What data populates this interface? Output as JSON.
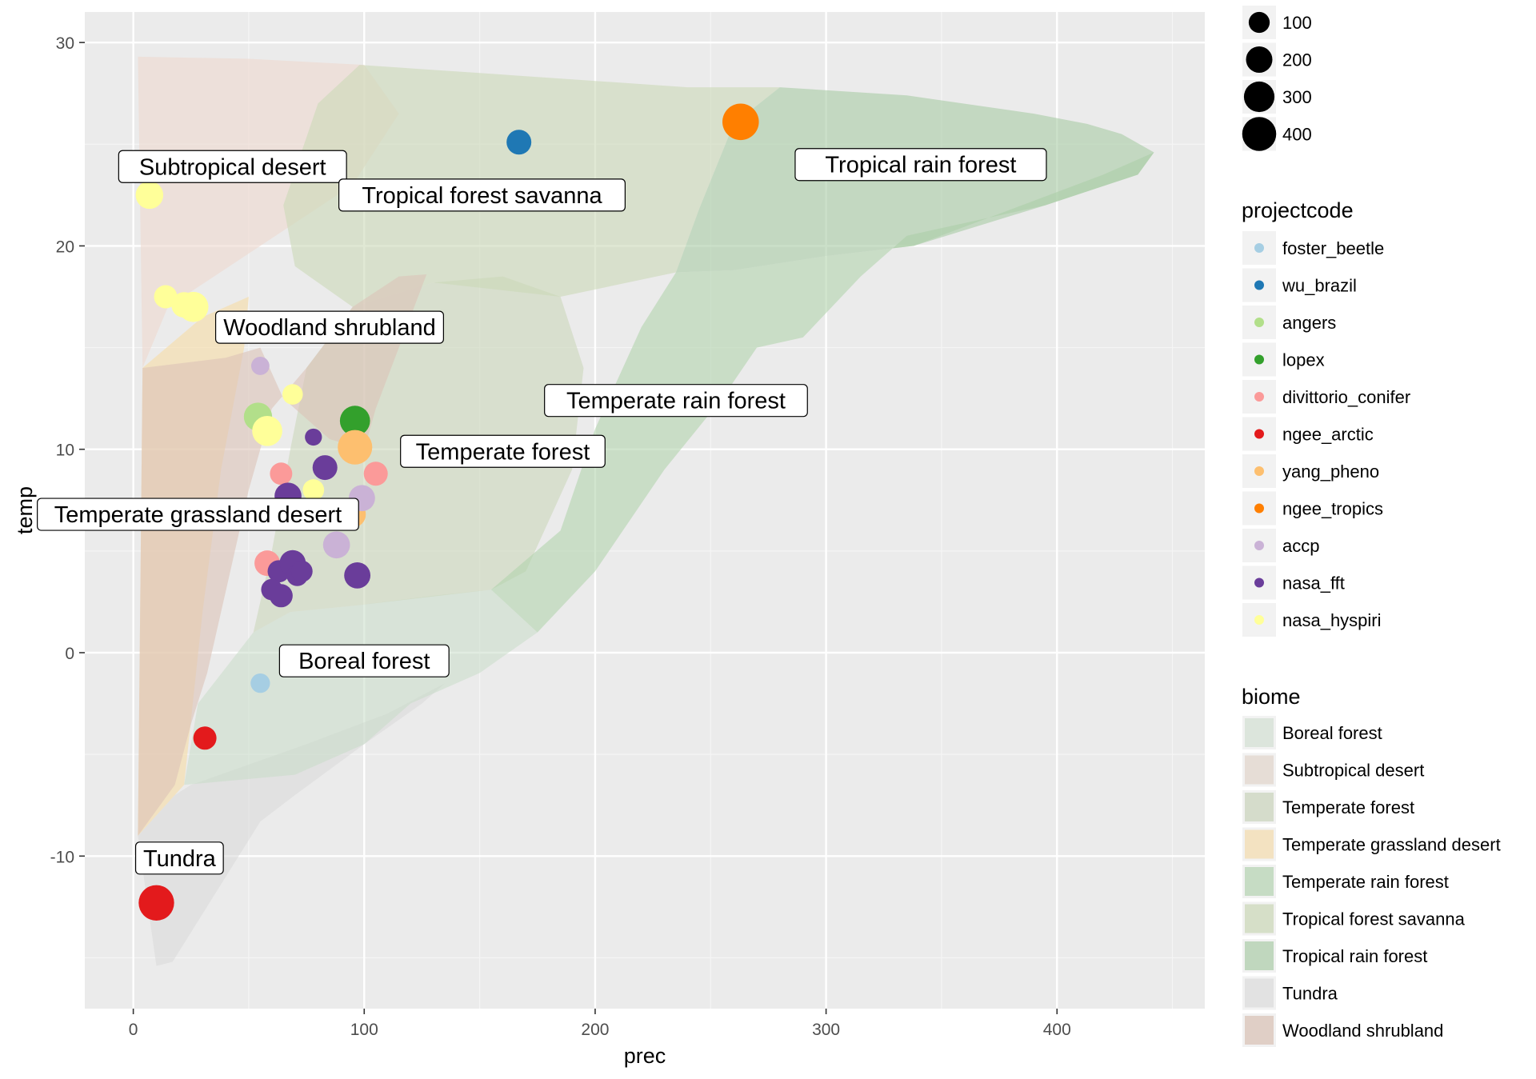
{
  "chart_data": {
    "type": "scatter",
    "title": "",
    "xlabel": "prec",
    "ylabel": "temp",
    "xlim": [
      -21,
      464
    ],
    "ylim": [
      -17.5,
      31.5
    ],
    "x_ticks": [
      0,
      100,
      200,
      300,
      400
    ],
    "y_ticks": [
      -10,
      0,
      10,
      20,
      30
    ],
    "grid": true,
    "legend_position": "right",
    "size_legend": {
      "title": "",
      "entries": [
        {
          "label": "100",
          "value": 100
        },
        {
          "label": "200",
          "value": 200
        },
        {
          "label": "300",
          "value": 300
        },
        {
          "label": "400",
          "value": 400
        }
      ]
    },
    "color_legend": {
      "title": "projectcode",
      "entries": [
        {
          "label": "foster_beetle",
          "color": "#a6cee3"
        },
        {
          "label": "wu_brazil",
          "color": "#1f78b4"
        },
        {
          "label": "angers",
          "color": "#b2df8a"
        },
        {
          "label": "lopex",
          "color": "#33a02c"
        },
        {
          "label": "divittorio_conifer",
          "color": "#fb9a99"
        },
        {
          "label": "ngee_arctic",
          "color": "#e31a1c"
        },
        {
          "label": "yang_pheno",
          "color": "#fdbf6f"
        },
        {
          "label": "ngee_tropics",
          "color": "#ff7f00"
        },
        {
          "label": "accp",
          "color": "#cab2d6"
        },
        {
          "label": "nasa_fft",
          "color": "#6a3d9a"
        },
        {
          "label": "nasa_hyspiri",
          "color": "#ffff99"
        }
      ]
    },
    "fill_legend": {
      "title": "biome",
      "entries": [
        {
          "label": "Boreal forest",
          "color": "#dce5dc"
        },
        {
          "label": "Subtropical desert",
          "color": "#e6ddd6"
        },
        {
          "label": "Temperate forest",
          "color": "#d5dccb"
        },
        {
          "label": "Temperate grassland desert",
          "color": "#f3e2c1"
        },
        {
          "label": "Temperate rain forest",
          "color": "#c6dcc4"
        },
        {
          "label": "Tropical forest savanna",
          "color": "#d6dfc8"
        },
        {
          "label": "Tropical rain forest",
          "color": "#c0d7be"
        },
        {
          "label": "Tundra",
          "color": "#e2e2e2"
        },
        {
          "label": "Woodland shrubland",
          "color": "#e0cfc6"
        }
      ]
    },
    "biome_regions": [
      {
        "name": "Tundra",
        "color": "#d9d9d9",
        "opacity": 0.55,
        "points": [
          [
            2,
            -9
          ],
          [
            10,
            -15.4
          ],
          [
            17,
            -15.2
          ],
          [
            55,
            -8.3
          ],
          [
            70,
            -7
          ],
          [
            100,
            -4.5
          ],
          [
            125,
            -2.5
          ],
          [
            135,
            -1.5
          ],
          [
            110,
            -3
          ],
          [
            75,
            -4.5
          ],
          [
            25,
            -6.5
          ],
          [
            18,
            -7
          ],
          [
            2,
            -9
          ]
        ]
      },
      {
        "name": "Boreal forest",
        "color": "#c8dcc8",
        "opacity": 0.55,
        "points": [
          [
            22,
            -6.5
          ],
          [
            28,
            -2.5
          ],
          [
            52,
            1
          ],
          [
            68,
            2
          ],
          [
            95,
            2.3
          ],
          [
            130,
            2.8
          ],
          [
            155,
            3.1
          ],
          [
            175,
            1
          ],
          [
            150,
            -1
          ],
          [
            120,
            -2.5
          ],
          [
            100,
            -4.5
          ],
          [
            70,
            -6
          ],
          [
            22,
            -6.5
          ]
        ]
      },
      {
        "name": "Temperate grassland desert",
        "color": "#f7dca5",
        "opacity": 0.6,
        "points": [
          [
            2,
            -9
          ],
          [
            4,
            14
          ],
          [
            30,
            16.5
          ],
          [
            50,
            17.5
          ],
          [
            48,
            15
          ],
          [
            38,
            9
          ],
          [
            30,
            2
          ],
          [
            22,
            -6.5
          ],
          [
            2,
            -9
          ]
        ]
      },
      {
        "name": "Subtropical desert",
        "color": "#eed9cf",
        "opacity": 0.6,
        "points": [
          [
            2,
            29.3
          ],
          [
            50,
            29.2
          ],
          [
            100,
            28.9
          ],
          [
            115,
            26.5
          ],
          [
            95,
            23
          ],
          [
            55,
            20
          ],
          [
            15,
            17
          ],
          [
            4,
            14
          ],
          [
            2,
            29.3
          ]
        ]
      },
      {
        "name": "Temperate forest",
        "color": "#cbd7bb",
        "opacity": 0.6,
        "points": [
          [
            52,
            1
          ],
          [
            60,
            5
          ],
          [
            68,
            10
          ],
          [
            75,
            14
          ],
          [
            95,
            17
          ],
          [
            130,
            18.2
          ],
          [
            160,
            18.5
          ],
          [
            185,
            17.5
          ],
          [
            195,
            14
          ],
          [
            190,
            9
          ],
          [
            170,
            4
          ],
          [
            155,
            3.1
          ],
          [
            95,
            2.3
          ],
          [
            68,
            2
          ],
          [
            52,
            1
          ]
        ]
      },
      {
        "name": "Temperate rain forest",
        "color": "#b2d3ae",
        "opacity": 0.6,
        "points": [
          [
            155,
            3.1
          ],
          [
            175,
            1
          ],
          [
            200,
            4
          ],
          [
            230,
            9
          ],
          [
            255,
            12.5
          ],
          [
            270,
            15
          ],
          [
            290,
            15.5
          ],
          [
            315,
            18.5
          ],
          [
            335,
            20.5
          ],
          [
            395,
            22
          ],
          [
            435,
            23.5
          ],
          [
            442,
            24.6
          ],
          [
            420,
            23.5
          ],
          [
            338,
            20
          ],
          [
            300,
            19.5
          ],
          [
            260,
            18.8
          ],
          [
            235,
            18.7
          ],
          [
            220,
            16
          ],
          [
            200,
            11
          ],
          [
            185,
            6
          ],
          [
            155,
            3.1
          ]
        ]
      },
      {
        "name": "Tropical forest savanna",
        "color": "#cbd9b7",
        "opacity": 0.6,
        "points": [
          [
            95,
            17
          ],
          [
            70,
            19
          ],
          [
            65,
            22
          ],
          [
            80,
            27
          ],
          [
            98,
            28.9
          ],
          [
            150,
            28.5
          ],
          [
            240,
            27.8
          ],
          [
            280,
            27.8
          ],
          [
            260,
            26
          ],
          [
            245,
            21.8
          ],
          [
            235,
            18.7
          ],
          [
            185,
            17.5
          ],
          [
            130,
            18.2
          ],
          [
            95,
            17
          ]
        ]
      },
      {
        "name": "Tropical rain forest",
        "color": "#a8cba5",
        "opacity": 0.6,
        "points": [
          [
            235,
            18.7
          ],
          [
            245,
            21.8
          ],
          [
            260,
            26
          ],
          [
            280,
            27.8
          ],
          [
            335,
            27.4
          ],
          [
            390,
            26.5
          ],
          [
            413,
            26
          ],
          [
            428,
            25.5
          ],
          [
            442,
            24.6
          ],
          [
            435,
            23.5
          ],
          [
            395,
            22
          ],
          [
            338,
            20
          ],
          [
            300,
            19.5
          ],
          [
            260,
            18.8
          ],
          [
            235,
            18.7
          ]
        ]
      },
      {
        "name": "Woodland shrubland",
        "color": "#dcc3b8",
        "opacity": 0.6,
        "points": [
          [
            2,
            -9
          ],
          [
            18,
            -6.5
          ],
          [
            25,
            -3.5
          ],
          [
            32,
            -1
          ],
          [
            40,
            3
          ],
          [
            50,
            8
          ],
          [
            60,
            12
          ],
          [
            75,
            14
          ],
          [
            95,
            17
          ],
          [
            115,
            18.5
          ],
          [
            127,
            18.6
          ],
          [
            115,
            15
          ],
          [
            105,
            12
          ],
          [
            100,
            10
          ],
          [
            85,
            10.5
          ],
          [
            65,
            12.5
          ],
          [
            55,
            15
          ],
          [
            40,
            14.5
          ],
          [
            4,
            14
          ],
          [
            2,
            -9
          ]
        ]
      }
    ],
    "biome_labels": [
      {
        "text": "Subtropical desert",
        "x": 43,
        "y": 23.9
      },
      {
        "text": "Tropical forest savanna",
        "x": 151,
        "y": 22.5
      },
      {
        "text": "Tropical rain forest",
        "x": 341,
        "y": 24.0
      },
      {
        "text": "Woodland shrubland",
        "x": 85,
        "y": 16.0
      },
      {
        "text": "Temperate rain forest",
        "x": 235,
        "y": 12.4
      },
      {
        "text": "Temperate forest",
        "x": 160,
        "y": 9.9
      },
      {
        "text": "Temperate grassland desert",
        "x": 28,
        "y": 6.8
      },
      {
        "text": "Boreal forest",
        "x": 100,
        "y": -0.4
      },
      {
        "text": "Tundra",
        "x": 20,
        "y": -10.1
      }
    ],
    "series": [
      {
        "name": "foster_beetle",
        "color": "#a6cee3",
        "points": [
          {
            "x": 55,
            "y": -1.5,
            "size": 60
          }
        ]
      },
      {
        "name": "wu_brazil",
        "color": "#1f78b4",
        "points": [
          {
            "x": 167,
            "y": 25.1,
            "size": 120
          }
        ]
      },
      {
        "name": "angers",
        "color": "#b2df8a",
        "points": [
          {
            "x": 54,
            "y": 11.6,
            "size": 170
          }
        ]
      },
      {
        "name": "lopex",
        "color": "#33a02c",
        "points": [
          {
            "x": 96,
            "y": 11.4,
            "size": 200
          }
        ]
      },
      {
        "name": "divittorio_conifer",
        "color": "#fb9a99",
        "points": [
          {
            "x": 64,
            "y": 8.8,
            "size": 90
          },
          {
            "x": 105,
            "y": 8.8,
            "size": 110
          },
          {
            "x": 58,
            "y": 4.4,
            "size": 130
          }
        ]
      },
      {
        "name": "ngee_arctic",
        "color": "#e31a1c",
        "points": [
          {
            "x": 31,
            "y": -4.2,
            "size": 100
          },
          {
            "x": 10,
            "y": -12.3,
            "size": 300
          }
        ]
      },
      {
        "name": "yang_pheno",
        "color": "#fdbf6f",
        "points": [
          {
            "x": 96,
            "y": 10.1,
            "size": 280
          },
          {
            "x": 95,
            "y": 6.8,
            "size": 140
          }
        ]
      },
      {
        "name": "ngee_tropics",
        "color": "#ff7f00",
        "points": [
          {
            "x": 263,
            "y": 26.1,
            "size": 320
          }
        ]
      },
      {
        "name": "accp",
        "color": "#cab2d6",
        "points": [
          {
            "x": 55,
            "y": 14.1,
            "size": 50
          },
          {
            "x": 99,
            "y": 7.6,
            "size": 140
          },
          {
            "x": 88,
            "y": 5.3,
            "size": 150
          }
        ]
      },
      {
        "name": "nasa_fft",
        "color": "#6a3d9a",
        "points": [
          {
            "x": 78,
            "y": 10.6,
            "size": 40
          },
          {
            "x": 83,
            "y": 9.1,
            "size": 120
          },
          {
            "x": 67,
            "y": 7.7,
            "size": 150
          },
          {
            "x": 63,
            "y": 4.0,
            "size": 90
          },
          {
            "x": 69,
            "y": 4.4,
            "size": 140
          },
          {
            "x": 71,
            "y": 3.8,
            "size": 80
          },
          {
            "x": 73,
            "y": 4.0,
            "size": 80
          },
          {
            "x": 60,
            "y": 3.1,
            "size": 80
          },
          {
            "x": 64,
            "y": 2.8,
            "size": 100
          },
          {
            "x": 97,
            "y": 3.8,
            "size": 140
          }
        ]
      },
      {
        "name": "nasa_hyspiri",
        "color": "#ffff99",
        "points": [
          {
            "x": 7,
            "y": 22.5,
            "size": 160
          },
          {
            "x": 14,
            "y": 17.5,
            "size": 100
          },
          {
            "x": 22,
            "y": 17.1,
            "size": 130
          },
          {
            "x": 26,
            "y": 17.0,
            "size": 200
          },
          {
            "x": 69,
            "y": 12.7,
            "size": 70
          },
          {
            "x": 58,
            "y": 10.9,
            "size": 200
          },
          {
            "x": 78,
            "y": 8.0,
            "size": 80
          }
        ]
      }
    ]
  }
}
